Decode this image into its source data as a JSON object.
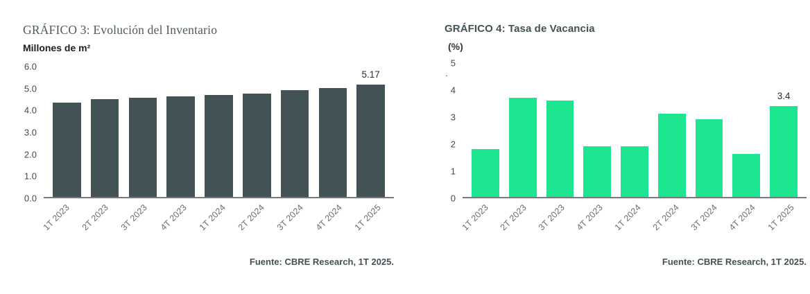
{
  "chart_data": [
    {
      "type": "bar",
      "title": "GRÁFICO 3: Evolución del Inventario",
      "unit": "Millones de m²",
      "categories": [
        "1T 2023",
        "2T 2023",
        "3T 2023",
        "4T 2023",
        "1T 2024",
        "2T 2024",
        "3T 2024",
        "4T 2024",
        "1T 2025"
      ],
      "values": [
        4.35,
        4.5,
        4.57,
        4.63,
        4.68,
        4.77,
        4.9,
        5.02,
        5.17
      ],
      "ylim": [
        0,
        6
      ],
      "yticks": [
        {
          "label": "0.0",
          "value": 0
        },
        {
          "label": "1.0",
          "value": 1
        },
        {
          "label": "2.0",
          "value": 2
        },
        {
          "label": "3.0",
          "value": 3
        },
        {
          "label": "4.0",
          "value": 4
        },
        {
          "label": "5.0",
          "value": 5
        },
        {
          "label": "6.0",
          "value": 6
        }
      ],
      "value_labels": {
        "8": "5.17"
      },
      "bar_color": "#435254",
      "grid": "off",
      "legend": "none",
      "source": "Fuente: CBRE Research, 1T 2025."
    },
    {
      "type": "bar",
      "title": "GRÁFICO 4: Tasa de Vacancia",
      "unit": "(%)",
      "categories": [
        "1T 2023",
        "2T 2023",
        "3T 2023",
        "4T 2023",
        "1T 2024",
        "2T 2024",
        "3T 2024",
        "4T 2024",
        "1T 2025"
      ],
      "values": [
        1.8,
        3.7,
        3.6,
        1.9,
        1.9,
        3.1,
        2.9,
        1.6,
        3.4
      ],
      "ylim": [
        0,
        5
      ],
      "yticks": [
        {
          "label": "0",
          "value": 0
        },
        {
          "label": "1",
          "value": 1
        },
        {
          "label": "2",
          "value": 2
        },
        {
          "label": "3",
          "value": 3
        },
        {
          "label": "4",
          "value": 4
        },
        {
          "label": "5",
          "value": 5
        }
      ],
      "value_labels": {
        "8": "3.4"
      },
      "bar_color": "#1CE58F",
      "stray_mark": ".",
      "grid": "off",
      "legend": "none",
      "source": "Fuente: CBRE Research, 1T 2025."
    }
  ],
  "colors": {
    "dark_bar": "#435254",
    "green_bar": "#1CE58F",
    "axis_line": "#767C7D"
  }
}
